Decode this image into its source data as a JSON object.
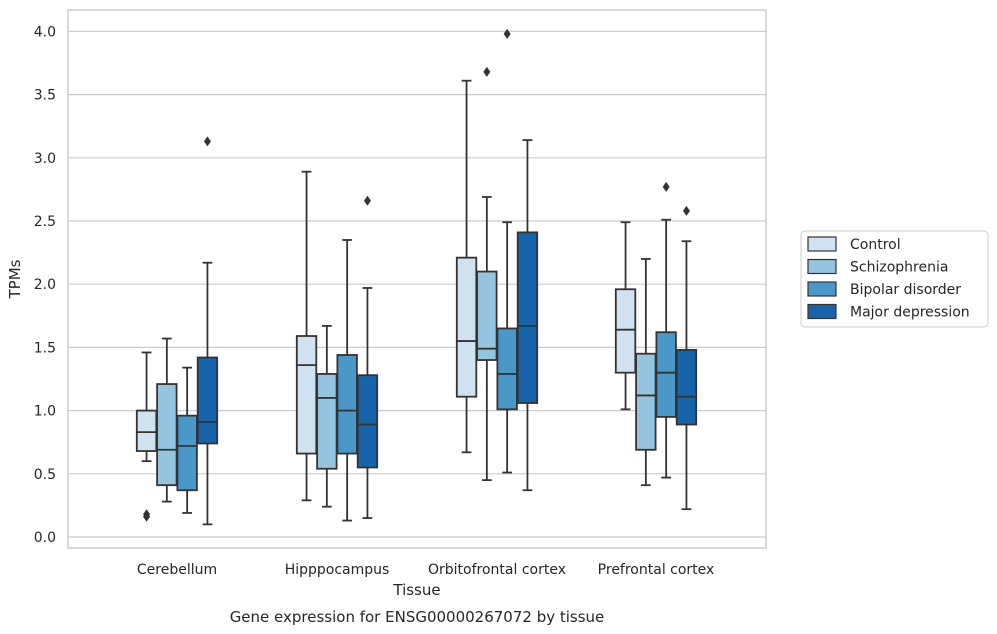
{
  "chart_data": {
    "type": "box",
    "title": "",
    "caption": "Gene expression for ENSG00000267072 by tissue",
    "xlabel": "Tissue",
    "ylabel": "TPMs",
    "ylim": [
      -0.07,
      4.18
    ],
    "yticks": [
      0.0,
      0.5,
      1.0,
      1.5,
      2.0,
      2.5,
      3.0,
      3.5,
      4.0
    ],
    "ytick_labels": [
      "0.0",
      "0.5",
      "1.0",
      "1.5",
      "2.0",
      "2.5",
      "3.0",
      "3.5",
      "4.0"
    ],
    "grid": "horizontal",
    "legend_position": "right",
    "categories": [
      "Cerebellum",
      "Hipppocampus",
      "Orbitofrontal cortex",
      "Prefrontal cortex"
    ],
    "series": [
      {
        "name": "Control",
        "color": "#d0e1f2",
        "boxes": [
          {
            "whislo": 0.6,
            "q1": 0.68,
            "med": 0.83,
            "q3": 1.0,
            "whishi": 1.46,
            "fliers": [
              0.16,
              0.18
            ]
          },
          {
            "whislo": 0.29,
            "q1": 0.66,
            "med": 1.36,
            "q3": 1.59,
            "whishi": 2.89,
            "fliers": []
          },
          {
            "whislo": 0.67,
            "q1": 1.11,
            "med": 1.55,
            "q3": 2.21,
            "whishi": 3.61,
            "fliers": []
          },
          {
            "whislo": 1.01,
            "q1": 1.3,
            "med": 1.64,
            "q3": 1.96,
            "whishi": 2.49,
            "fliers": []
          }
        ]
      },
      {
        "name": "Schizophrenia",
        "color": "#94c4df",
        "boxes": [
          {
            "whislo": 0.28,
            "q1": 0.41,
            "med": 0.69,
            "q3": 1.21,
            "whishi": 1.57,
            "fliers": []
          },
          {
            "whislo": 0.24,
            "q1": 0.54,
            "med": 1.1,
            "q3": 1.29,
            "whishi": 1.67,
            "fliers": []
          },
          {
            "whislo": 0.45,
            "q1": 1.4,
            "med": 1.49,
            "q3": 2.1,
            "whishi": 2.69,
            "fliers": [
              3.68
            ]
          },
          {
            "whislo": 0.41,
            "q1": 0.69,
            "med": 1.12,
            "q3": 1.45,
            "whishi": 2.2,
            "fliers": []
          }
        ]
      },
      {
        "name": "Bipolar disorder",
        "color": "#4a98c9",
        "boxes": [
          {
            "whislo": 0.19,
            "q1": 0.37,
            "med": 0.72,
            "q3": 0.96,
            "whishi": 1.34,
            "fliers": []
          },
          {
            "whislo": 0.13,
            "q1": 0.66,
            "med": 1.0,
            "q3": 1.44,
            "whishi": 2.35,
            "fliers": []
          },
          {
            "whislo": 0.51,
            "q1": 1.01,
            "med": 1.29,
            "q3": 1.65,
            "whishi": 2.49,
            "fliers": [
              3.98
            ]
          },
          {
            "whislo": 0.47,
            "q1": 0.95,
            "med": 1.3,
            "q3": 1.62,
            "whishi": 2.51,
            "fliers": [
              2.77
            ]
          }
        ]
      },
      {
        "name": "Major depression",
        "color": "#1764ab",
        "boxes": [
          {
            "whislo": 0.1,
            "q1": 0.74,
            "med": 0.91,
            "q3": 1.42,
            "whishi": 2.17,
            "fliers": [
              3.13
            ]
          },
          {
            "whislo": 0.15,
            "q1": 0.55,
            "med": 0.89,
            "q3": 1.28,
            "whishi": 1.97,
            "fliers": [
              2.66
            ]
          },
          {
            "whislo": 0.37,
            "q1": 1.06,
            "med": 1.67,
            "q3": 2.41,
            "whishi": 3.14,
            "fliers": []
          },
          {
            "whislo": 0.22,
            "q1": 0.89,
            "med": 1.11,
            "q3": 1.48,
            "whishi": 2.34,
            "fliers": [
              2.58
            ]
          }
        ]
      }
    ]
  }
}
